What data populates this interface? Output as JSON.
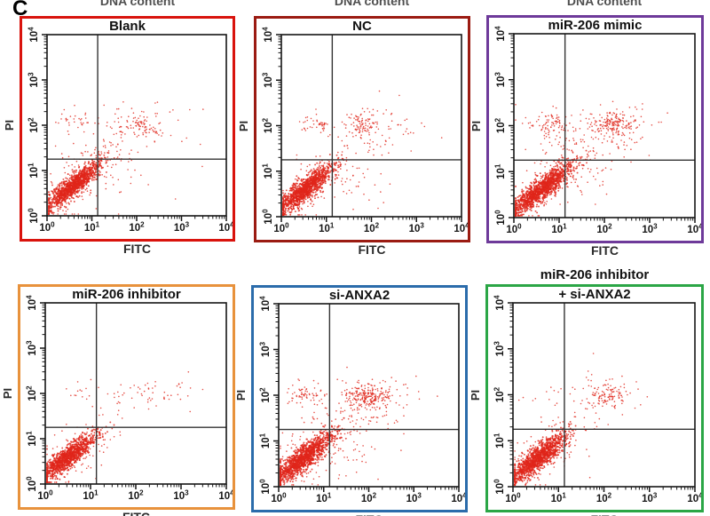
{
  "figure_label": "C",
  "top_cropped_labels": [
    "DNA content",
    "DNA content",
    "DNA content"
  ],
  "colors": {
    "dot": "#e0251a",
    "axis": "#151515",
    "quadrant_line": "#333333"
  },
  "panels": [
    {
      "id": "blank",
      "border_color": "#d9130d"
    },
    {
      "id": "nc",
      "border_color": "#9b1b12"
    },
    {
      "id": "mir-206-mimic",
      "border_color": "#6e3a9a"
    },
    {
      "id": "mir-206-inhibitor",
      "border_color": "#e8923c"
    },
    {
      "id": "si-anxa2",
      "border_color": "#2b6cab"
    },
    {
      "id": "mir-206-inhibitor-plus-si-anxa2",
      "border_color": "#2ba646"
    }
  ],
  "chart_data": {
    "type": "scatter",
    "xlabel": "FITC",
    "ylabel": "PI",
    "x_scale": "log10",
    "y_scale": "log10",
    "xlim": [
      1,
      10000
    ],
    "ylim": [
      1,
      10000
    ],
    "tick_exponents": [
      0,
      1,
      2,
      3,
      4
    ],
    "tick_base": "10",
    "quadrant_gate_x": 13.5,
    "quadrant_gate_y": 17.8,
    "grid": false,
    "point_color": "#e0251a",
    "panels": [
      {
        "title": "Blank",
        "clusters": [
          {
            "name": "viable-main",
            "n": 1150,
            "cx": 0.58,
            "cy": 0.66,
            "sx": 0.3,
            "sy": 0.26,
            "rho": 0.88
          },
          {
            "name": "viable-halo",
            "n": 110,
            "cx": 0.7,
            "cy": 0.75,
            "sx": 0.45,
            "sy": 0.4,
            "rho": 0.6
          },
          {
            "name": "upper-left",
            "n": 35,
            "cx": 0.65,
            "cy": 2.05,
            "sx": 0.22,
            "sy": 0.15,
            "rho": 0
          },
          {
            "name": "upper-right",
            "n": 90,
            "cx": 2.1,
            "cy": 2.0,
            "sx": 0.3,
            "sy": 0.14,
            "rho": 0.05
          },
          {
            "name": "upper-right-halo",
            "n": 40,
            "cx": 2.1,
            "cy": 1.9,
            "sx": 0.55,
            "sy": 0.32,
            "rho": 0
          },
          {
            "name": "mid-band",
            "n": 30,
            "cx": 1.3,
            "cy": 1.5,
            "sx": 0.55,
            "sy": 0.22,
            "rho": 0
          },
          {
            "name": "lower-right",
            "n": 25,
            "cx": 1.6,
            "cy": 0.95,
            "sx": 0.38,
            "sy": 0.3,
            "rho": 0
          }
        ]
      },
      {
        "title": "NC",
        "clusters": [
          {
            "name": "viable-main",
            "n": 1150,
            "cx": 0.55,
            "cy": 0.62,
            "sx": 0.31,
            "sy": 0.27,
            "rho": 0.87
          },
          {
            "name": "viable-halo",
            "n": 120,
            "cx": 0.7,
            "cy": 0.72,
            "sx": 0.45,
            "sy": 0.4,
            "rho": 0.6
          },
          {
            "name": "upper-left",
            "n": 28,
            "cx": 0.75,
            "cy": 2.05,
            "sx": 0.2,
            "sy": 0.12,
            "rho": 0
          },
          {
            "name": "upper-left-clump",
            "n": 14,
            "cx": 0.92,
            "cy": 2.0,
            "sx": 0.05,
            "sy": 0.06,
            "rho": 0
          },
          {
            "name": "upper-right",
            "n": 90,
            "cx": 1.8,
            "cy": 2.0,
            "sx": 0.18,
            "sy": 0.16,
            "rho": 0
          },
          {
            "name": "upper-right-halo",
            "n": 60,
            "cx": 2.1,
            "cy": 1.85,
            "sx": 0.5,
            "sy": 0.35,
            "rho": 0
          },
          {
            "name": "lower-right",
            "n": 35,
            "cx": 1.7,
            "cy": 0.8,
            "sx": 0.45,
            "sy": 0.35,
            "rho": 0
          }
        ]
      },
      {
        "title": "miR-206 mimic",
        "clusters": [
          {
            "name": "viable-main",
            "n": 1250,
            "cx": 0.62,
            "cy": 0.62,
            "sx": 0.33,
            "sy": 0.27,
            "rho": 0.87
          },
          {
            "name": "viable-halo",
            "n": 130,
            "cx": 0.75,
            "cy": 0.72,
            "sx": 0.5,
            "sy": 0.42,
            "rho": 0.6
          },
          {
            "name": "upper-left",
            "n": 70,
            "cx": 0.8,
            "cy": 2.05,
            "sx": 0.22,
            "sy": 0.12,
            "rho": 0
          },
          {
            "name": "upper-left-halo",
            "n": 25,
            "cx": 0.75,
            "cy": 1.85,
            "sx": 0.3,
            "sy": 0.3,
            "rho": 0
          },
          {
            "name": "upper-right",
            "n": 150,
            "cx": 2.25,
            "cy": 2.05,
            "sx": 0.25,
            "sy": 0.14,
            "rho": 0
          },
          {
            "name": "upper-right-halo",
            "n": 80,
            "cx": 2.1,
            "cy": 1.9,
            "sx": 0.55,
            "sy": 0.35,
            "rho": 0
          },
          {
            "name": "mid-band",
            "n": 50,
            "cx": 1.4,
            "cy": 1.55,
            "sx": 0.5,
            "sy": 0.3,
            "rho": 0
          },
          {
            "name": "lower-right",
            "n": 25,
            "cx": 1.6,
            "cy": 0.9,
            "sx": 0.4,
            "sy": 0.35,
            "rho": 0
          }
        ]
      },
      {
        "title": "miR-206 inhibitor",
        "clusters": [
          {
            "name": "viable-main",
            "n": 1100,
            "cx": 0.5,
            "cy": 0.6,
            "sx": 0.3,
            "sy": 0.25,
            "rho": 0.87
          },
          {
            "name": "viable-halo",
            "n": 110,
            "cx": 0.6,
            "cy": 0.66,
            "sx": 0.42,
            "sy": 0.36,
            "rho": 0.6
          },
          {
            "name": "upper-left",
            "n": 12,
            "cx": 0.8,
            "cy": 2.0,
            "sx": 0.2,
            "sy": 0.15,
            "rho": 0
          },
          {
            "name": "upper-band",
            "n": 55,
            "cx": 2.3,
            "cy": 2.0,
            "sx": 0.6,
            "sy": 0.14,
            "rho": 0
          },
          {
            "name": "mid-band",
            "n": 12,
            "cx": 1.5,
            "cy": 1.5,
            "sx": 0.4,
            "sy": 0.3,
            "rho": 0
          },
          {
            "name": "lower-right",
            "n": 10,
            "cx": 1.4,
            "cy": 1.0,
            "sx": 0.3,
            "sy": 0.25,
            "rho": 0
          }
        ]
      },
      {
        "title": "si-ANXA2",
        "clusters": [
          {
            "name": "viable-main",
            "n": 1250,
            "cx": 0.55,
            "cy": 0.62,
            "sx": 0.34,
            "sy": 0.28,
            "rho": 0.86
          },
          {
            "name": "viable-halo",
            "n": 140,
            "cx": 0.65,
            "cy": 0.7,
            "sx": 0.5,
            "sy": 0.42,
            "rho": 0.6
          },
          {
            "name": "upper-left",
            "n": 50,
            "cx": 0.62,
            "cy": 2.0,
            "sx": 0.2,
            "sy": 0.13,
            "rho": 0
          },
          {
            "name": "upper-left-clump",
            "n": 14,
            "cx": 0.55,
            "cy": 1.98,
            "sx": 0.05,
            "sy": 0.05,
            "rho": 0
          },
          {
            "name": "upper-right",
            "n": 200,
            "cx": 2.0,
            "cy": 1.98,
            "sx": 0.27,
            "sy": 0.13,
            "rho": 0
          },
          {
            "name": "upper-right-halo",
            "n": 90,
            "cx": 2.15,
            "cy": 1.9,
            "sx": 0.55,
            "sy": 0.33,
            "rho": 0
          },
          {
            "name": "mid-band",
            "n": 40,
            "cx": 1.5,
            "cy": 1.45,
            "sx": 0.45,
            "sy": 0.28,
            "rho": 0
          },
          {
            "name": "lower-right",
            "n": 45,
            "cx": 1.6,
            "cy": 0.9,
            "sx": 0.45,
            "sy": 0.33,
            "rho": 0
          }
        ]
      },
      {
        "title": "+ si-ANXA2",
        "title_above": "miR-206 inhibitor",
        "clusters": [
          {
            "name": "viable-main",
            "n": 1200,
            "cx": 0.55,
            "cy": 0.62,
            "sx": 0.32,
            "sy": 0.27,
            "rho": 0.87
          },
          {
            "name": "viable-halo",
            "n": 110,
            "cx": 0.65,
            "cy": 0.7,
            "sx": 0.45,
            "sy": 0.38,
            "rho": 0.6
          },
          {
            "name": "upper-left",
            "n": 10,
            "cx": 0.7,
            "cy": 1.95,
            "sx": 0.25,
            "sy": 0.18,
            "rho": 0
          },
          {
            "name": "upper-right",
            "n": 95,
            "cx": 2.05,
            "cy": 2.0,
            "sx": 0.22,
            "sy": 0.13,
            "rho": 0
          },
          {
            "name": "upper-right-halo",
            "n": 40,
            "cx": 2.1,
            "cy": 1.9,
            "sx": 0.45,
            "sy": 0.3,
            "rho": 0
          },
          {
            "name": "mid-band",
            "n": 15,
            "cx": 1.4,
            "cy": 1.5,
            "sx": 0.4,
            "sy": 0.25,
            "rho": 0
          },
          {
            "name": "lower-right",
            "n": 12,
            "cx": 1.5,
            "cy": 0.95,
            "sx": 0.35,
            "sy": 0.25,
            "rho": 0
          }
        ]
      }
    ]
  }
}
